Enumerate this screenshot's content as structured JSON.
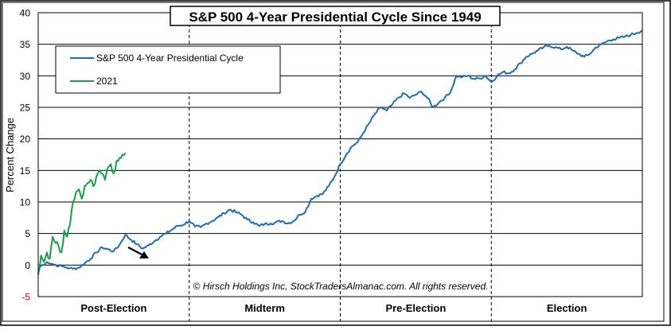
{
  "chart_data": {
    "type": "line",
    "title": "S&P 500 4-Year Presidential Cycle Since 1949",
    "ylabel": "Percent Change",
    "xlabel": "",
    "ylim": [
      -5,
      40
    ],
    "yticks": [
      -5,
      0,
      5,
      10,
      15,
      20,
      25,
      30,
      35,
      40
    ],
    "x_unit": "trading weeks from start of cycle (0-208)",
    "xlim": [
      0,
      208
    ],
    "grid": true,
    "x_categories": [
      "Post-Election",
      "Midterm",
      "Pre-Election",
      "Election"
    ],
    "legend_position": "top-left",
    "annotation": "© Hirsch Holdings Inc, StockTradersAlmanac.com. All rights reserved.",
    "series": [
      {
        "name": "S&P 500 4-Year Presidential Cycle",
        "color": "#1f6bb5",
        "x": [
          0,
          3,
          6,
          9,
          12,
          14,
          16,
          18,
          20,
          22,
          24,
          26,
          28,
          30,
          32,
          34,
          36,
          38,
          40,
          42,
          44,
          46,
          48,
          50,
          52,
          54,
          56,
          58,
          60,
          62,
          64,
          66,
          68,
          70,
          72,
          74,
          76,
          78,
          80,
          82,
          84,
          86,
          88,
          90,
          92,
          94,
          96,
          98,
          100,
          102,
          104,
          106,
          108,
          110,
          112,
          114,
          116,
          118,
          120,
          122,
          124,
          126,
          128,
          130,
          132,
          134,
          136,
          138,
          140,
          142,
          144,
          146,
          148,
          150,
          152,
          154,
          156,
          158,
          160,
          162,
          164,
          166,
          168,
          170,
          172,
          174,
          176,
          178,
          180,
          182,
          184,
          186,
          188,
          190,
          192,
          194,
          196,
          198,
          200,
          202,
          204,
          206,
          208
        ],
        "values": [
          -0.5,
          0.5,
          0.0,
          -0.3,
          -0.6,
          -0.4,
          0.3,
          1.0,
          2.0,
          2.8,
          2.5,
          2.2,
          3.2,
          4.8,
          4.0,
          3.3,
          2.6,
          3.1,
          3.8,
          4.5,
          5.0,
          5.6,
          6.2,
          6.4,
          7.0,
          6.1,
          6.0,
          6.6,
          7.0,
          7.6,
          8.2,
          8.8,
          8.4,
          8.0,
          7.2,
          6.8,
          6.2,
          6.5,
          6.6,
          6.8,
          7.0,
          6.6,
          7.0,
          8.0,
          8.5,
          10.5,
          11.0,
          11.3,
          12.5,
          14.0,
          16.0,
          17.5,
          18.8,
          19.5,
          21.0,
          22.5,
          24.0,
          25.0,
          24.5,
          25.5,
          26.5,
          27.2,
          26.5,
          27.0,
          27.5,
          26.5,
          25.0,
          25.8,
          26.5,
          27.5,
          30.0,
          29.8,
          30.0,
          29.5,
          29.6,
          30.0,
          29.0,
          30.0,
          30.6,
          30.4,
          31.0,
          32.0,
          33.0,
          33.5,
          34.0,
          34.5,
          34.8,
          34.5,
          34.2,
          34.6,
          34.0,
          33.5,
          33.0,
          33.5,
          34.5,
          35.0,
          35.5,
          35.8,
          36.0,
          36.2,
          36.5,
          36.8,
          37.2
        ]
      },
      {
        "name": "2021",
        "color": "#1a9e49",
        "x": [
          0,
          1,
          2,
          3,
          4,
          5,
          6,
          7,
          8,
          9,
          10,
          11,
          12,
          13,
          14,
          15,
          16,
          17,
          18,
          19,
          20,
          21,
          22,
          23,
          24,
          25,
          26,
          27,
          28,
          29,
          30
        ],
        "values": [
          -1.5,
          1.5,
          0.5,
          2.0,
          1.0,
          4.5,
          3.5,
          3.0,
          2.0,
          5.5,
          4.5,
          6.5,
          10.0,
          11.5,
          12.0,
          10.5,
          12.5,
          13.0,
          13.5,
          12.5,
          14.0,
          15.0,
          14.5,
          13.5,
          15.5,
          16.0,
          14.5,
          16.5,
          17.0,
          17.5,
          17.8
        ]
      }
    ]
  },
  "legend": {
    "series1_label": "S&P 500 4-Year Presidential Cycle",
    "series2_label": "2021"
  }
}
